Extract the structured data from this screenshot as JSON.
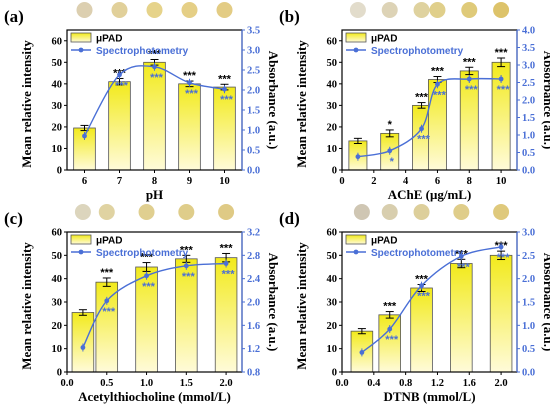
{
  "chart_data": [
    {
      "type": "bar",
      "panel_label": "(a)",
      "x": [
        6,
        7,
        8,
        9,
        10
      ],
      "xticks": [
        "6",
        "7",
        "8",
        "9",
        "10"
      ],
      "xlim": [
        5.5,
        10.5
      ],
      "series": [
        {
          "name": "μPAD",
          "type": "bar",
          "values": [
            19.5,
            41,
            50,
            40,
            38.5
          ],
          "errors": [
            1.2,
            1.5,
            1.3,
            1.3,
            1.3
          ],
          "significance": [
            "",
            "***",
            "***",
            "***",
            "***"
          ]
        },
        {
          "name": "Spectrophotometry",
          "type": "line",
          "axis": "right",
          "values": [
            0.85,
            2.38,
            2.58,
            2.18,
            2.02
          ],
          "significance": [
            "",
            "***",
            "***",
            "***",
            "***"
          ]
        }
      ],
      "xlabel": "pH",
      "ylabel": "Mean relative intensity",
      "y2label": "Absorbance (a.u.)",
      "ylim": [
        0,
        65
      ],
      "yticks": [
        0,
        10,
        20,
        30,
        40,
        50,
        60
      ],
      "y2lim": [
        0,
        3.5
      ],
      "y2ticks": [
        "0.0",
        "0.5",
        "1.0",
        "1.5",
        "2.0",
        "2.5",
        "3.0",
        "3.5"
      ],
      "swatches": [
        "#dccfb0",
        "#e1d09a",
        "#e6d38a",
        "#e5cf86",
        "#e3cc84"
      ],
      "legend_position": "top-left"
    },
    {
      "type": "bar",
      "panel_label": "(b)",
      "x": [
        1,
        3,
        5,
        6,
        8,
        10
      ],
      "xticks": [
        "0",
        "2",
        "4",
        "6",
        "8",
        "10"
      ],
      "xtick_values": [
        0,
        2,
        4,
        6,
        8,
        10
      ],
      "xlim": [
        0,
        11
      ],
      "series": [
        {
          "name": "μPAD",
          "type": "bar",
          "values": [
            13.5,
            17,
            30,
            42,
            46,
            50
          ],
          "errors": [
            1.2,
            1.6,
            1.3,
            1.4,
            1.7,
            2.0
          ],
          "significance": [
            "",
            "*",
            "***",
            "***",
            "***",
            "***"
          ]
        },
        {
          "name": "Spectrophotometry",
          "type": "line",
          "axis": "right",
          "values": [
            0.38,
            0.55,
            1.18,
            2.45,
            2.6,
            2.6
          ],
          "significance": [
            "",
            "*",
            "***",
            "***",
            "***",
            "***"
          ]
        }
      ],
      "xlabel": "AChE (μg/mL)",
      "ylabel": "Mean relative intensity",
      "y2label": "Absorbance (a.u.)",
      "ylim": [
        0,
        65
      ],
      "yticks": [
        0,
        10,
        20,
        30,
        40,
        50,
        60
      ],
      "y2lim": [
        0,
        4.0
      ],
      "y2ticks": [
        "0.0",
        "0.5",
        "1.0",
        "1.5",
        "2.0",
        "2.5",
        "3.0",
        "3.5",
        "4.0"
      ],
      "swatches": [
        "#e2dccb",
        "#ddd3b6",
        "#dfd29f",
        "#e0cf8a",
        "#dfca79",
        "#ddc36a"
      ],
      "legend_position": "top-left"
    },
    {
      "type": "bar",
      "panel_label": "(c)",
      "x": [
        0.2,
        0.5,
        1.0,
        1.5,
        2.0
      ],
      "xticks": [
        "0.0",
        "0.5",
        "1.0",
        "1.5",
        "2.0"
      ],
      "xtick_values": [
        0,
        0.5,
        1.0,
        1.5,
        2.0
      ],
      "xlim": [
        0,
        2.2
      ],
      "series": [
        {
          "name": "μPAD",
          "type": "bar",
          "values": [
            25.5,
            38.5,
            45,
            48.5,
            49
          ],
          "errors": [
            1.2,
            1.8,
            1.9,
            1.5,
            1.8
          ],
          "significance": [
            "",
            "***",
            "***",
            "***",
            "***"
          ]
        },
        {
          "name": "Spectrophotometry",
          "type": "line",
          "axis": "right",
          "values": [
            1.22,
            2.02,
            2.45,
            2.62,
            2.66
          ],
          "significance": [
            "",
            "***",
            "***",
            "***",
            "***"
          ]
        }
      ],
      "xlabel": "Acetylthiocholine (mmol/L)",
      "ylabel": "Mean relative intensity",
      "y2label": "Absorbance (a.u.)",
      "ylim": [
        0,
        60
      ],
      "yticks": [
        0,
        10,
        20,
        30,
        40,
        50,
        60
      ],
      "y2lim": [
        0.8,
        3.2
      ],
      "y2ticks": [
        "0.8",
        "1.2",
        "1.6",
        "2.0",
        "2.4",
        "2.8",
        "3.2"
      ],
      "swatches": [
        "#dcd5bd",
        "#e0d3a2",
        "#e0cf90",
        "#dfcd8a",
        "#dfca85"
      ],
      "legend_position": "top-left"
    },
    {
      "type": "bar",
      "panel_label": "(d)",
      "x": [
        0.25,
        0.6,
        1.0,
        1.5,
        2.0
      ],
      "xticks": [
        "0.0",
        "0.4",
        "0.8",
        "1.2",
        "1.6",
        "2.0"
      ],
      "xtick_values": [
        0,
        0.4,
        0.8,
        1.2,
        1.6,
        2.0
      ],
      "xlim": [
        0,
        2.2
      ],
      "series": [
        {
          "name": "μPAD",
          "type": "bar",
          "values": [
            17.5,
            24.5,
            36,
            46.5,
            50
          ],
          "errors": [
            1.1,
            1.4,
            1.5,
            1.8,
            1.8
          ],
          "significance": [
            "",
            "***",
            "***",
            "***",
            "***"
          ]
        },
        {
          "name": "Spectrophotometry",
          "type": "line",
          "axis": "right",
          "values": [
            0.42,
            0.92,
            1.85,
            2.48,
            2.68
          ],
          "significance": [
            "",
            "***",
            "***",
            "***",
            "***"
          ]
        }
      ],
      "xlabel": "DTNB (mmol/L)",
      "ylabel": "Mean relative intensity",
      "y2label": "Absorbance (a.u.)",
      "ylim": [
        0,
        60
      ],
      "yticks": [
        0,
        10,
        20,
        30,
        40,
        50,
        60
      ],
      "y2lim": [
        0,
        3.0
      ],
      "y2ticks": [
        "0.0",
        "0.5",
        "1.0",
        "1.5",
        "2.0",
        "2.5",
        "3.0"
      ],
      "swatches": [
        "#cfc6b3",
        "#d8ceae",
        "#ddcf9b",
        "#dfcd8a",
        "#dfc97c"
      ],
      "legend_position": "top-left"
    }
  ],
  "colors": {
    "bar_top": "#f2ea1b",
    "bar_bottom": "#fffbd9",
    "bar_border": "#555555",
    "line": "#4a6fd6",
    "right_axis": "#4a6fd6"
  }
}
